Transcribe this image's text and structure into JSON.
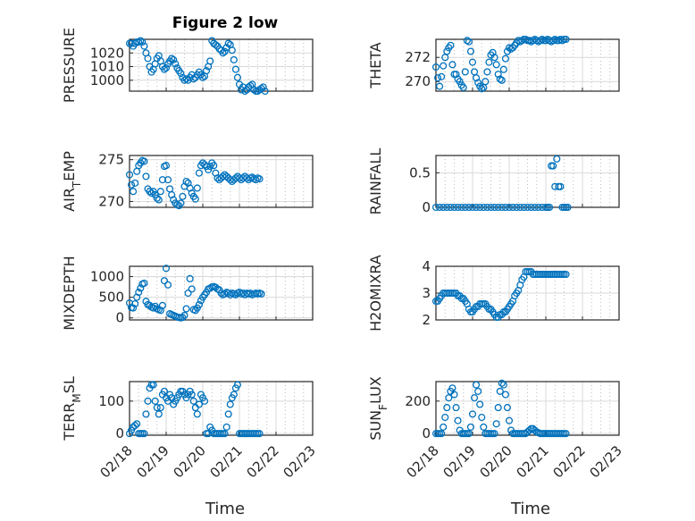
{
  "figure": {
    "title": "Figure 2 low"
  },
  "chart_data": [
    {
      "id": "pressure",
      "type": "scatter",
      "ylabel": "PRESSURE",
      "ylim": [
        992,
        1030
      ],
      "yticks": [
        1000,
        1010,
        1020
      ],
      "xlim": [
        0,
        5
      ],
      "xticks": [
        "02/18",
        "02/19",
        "02/20",
        "02/21",
        "02/22",
        "02/23"
      ],
      "show_xticklabels": false,
      "title": "Figure 2 low",
      "x": [
        0,
        0.05,
        0.1,
        0.15,
        0.2,
        0.25,
        0.3,
        0.35,
        0.4,
        0.45,
        0.5,
        0.55,
        0.6,
        0.65,
        0.7,
        0.75,
        0.8,
        0.85,
        0.9,
        0.95,
        1.0,
        1.05,
        1.1,
        1.15,
        1.2,
        1.25,
        1.3,
        1.35,
        1.4,
        1.45,
        1.5,
        1.55,
        1.6,
        1.65,
        1.7,
        1.75,
        1.8,
        1.85,
        1.9,
        1.95,
        2.0,
        2.05,
        2.1,
        2.15,
        2.2,
        2.25,
        2.3,
        2.35,
        2.4,
        2.45,
        2.5,
        2.55,
        2.6,
        2.65,
        2.7,
        2.75,
        2.8,
        2.85,
        2.9,
        2.95,
        3.0,
        3.05,
        3.1,
        3.15,
        3.2,
        3.25,
        3.3,
        3.35,
        3.4,
        3.45,
        3.5,
        3.55,
        3.6,
        3.65,
        3.7
      ],
      "y": [
        1027,
        1027,
        1025,
        1027,
        1028,
        1028,
        1029,
        1028,
        1025,
        1020,
        1016,
        1010,
        1006,
        1008,
        1012,
        1016,
        1018,
        1014,
        1010,
        1008,
        1009,
        1012,
        1014,
        1016,
        1015,
        1012,
        1009,
        1007,
        1005,
        1002,
        1000,
        1001,
        1000,
        1002,
        1004,
        1001,
        1002,
        1004,
        1006,
        1004,
        1002,
        1003,
        1007,
        1010,
        1014,
        1029,
        1027,
        1026,
        1025,
        1023,
        1022,
        1020,
        1021,
        1024,
        1027,
        1026,
        1022,
        1015,
        1008,
        1002,
        997,
        993,
        995,
        992,
        993,
        995,
        996,
        997,
        993,
        992,
        992,
        993,
        994,
        995,
        992
      ]
    },
    {
      "id": "theta",
      "type": "scatter",
      "ylabel": "THETA",
      "ylim": [
        269.2,
        273.5
      ],
      "yticks": [
        270,
        272
      ],
      "xlim": [
        0,
        5
      ],
      "xticks": [
        "02/18",
        "02/19",
        "02/20",
        "02/21",
        "02/22",
        "02/23"
      ],
      "show_xticklabels": false,
      "x": [
        0,
        0.05,
        0.1,
        0.15,
        0.2,
        0.25,
        0.3,
        0.35,
        0.4,
        0.45,
        0.5,
        0.55,
        0.6,
        0.65,
        0.7,
        0.75,
        0.8,
        0.85,
        0.9,
        0.95,
        1.0,
        1.05,
        1.1,
        1.15,
        1.2,
        1.25,
        1.3,
        1.35,
        1.4,
        1.45,
        1.5,
        1.55,
        1.6,
        1.65,
        1.7,
        1.75,
        1.8,
        1.85,
        1.9,
        1.95,
        2.0,
        2.05,
        2.1,
        2.15,
        2.2,
        2.25,
        2.3,
        2.35,
        2.4,
        2.45,
        2.5,
        2.55,
        2.6,
        2.65,
        2.7,
        2.75,
        2.8,
        2.85,
        2.9,
        2.95,
        3.0,
        3.05,
        3.1,
        3.15,
        3.2,
        3.25,
        3.3,
        3.35,
        3.4,
        3.45,
        3.5,
        3.55
      ],
      "y": [
        271.2,
        270.3,
        269.6,
        270.4,
        271.3,
        272.0,
        272.5,
        272.8,
        273.0,
        271.4,
        270.6,
        270.6,
        270.2,
        270.0,
        269.7,
        269.5,
        270.8,
        273.4,
        273.3,
        272.5,
        271.6,
        270.8,
        270.3,
        269.9,
        269.6,
        269.4,
        269.5,
        270.0,
        270.8,
        271.6,
        272.2,
        272.4,
        272.0,
        271.4,
        270.6,
        270.2,
        270.1,
        271.0,
        271.9,
        272.5,
        272.8,
        272.7,
        272.8,
        273.0,
        273.2,
        273.4,
        273.3,
        273.4,
        273.5,
        273.5,
        273.4,
        273.4,
        273.3,
        273.4,
        273.5,
        273.4,
        273.3,
        273.4,
        273.5,
        273.4,
        273.4,
        273.5,
        273.4,
        273.3,
        273.4,
        273.5,
        273.4,
        273.4,
        273.5,
        273.4,
        273.5,
        273.5
      ]
    },
    {
      "id": "air_temp",
      "type": "scatter",
      "ylabel": "AIR_TEMP",
      "ylim": [
        269.3,
        275.5
      ],
      "yticks": [
        270,
        275
      ],
      "xlim": [
        0,
        5
      ],
      "xticks": [
        "02/18",
        "02/19",
        "02/20",
        "02/21",
        "02/22",
        "02/23"
      ],
      "show_xticklabels": false,
      "x": [
        0,
        0.05,
        0.1,
        0.15,
        0.2,
        0.25,
        0.3,
        0.35,
        0.4,
        0.45,
        0.5,
        0.55,
        0.6,
        0.65,
        0.7,
        0.75,
        0.8,
        0.85,
        0.9,
        0.95,
        1.0,
        1.05,
        1.1,
        1.15,
        1.2,
        1.25,
        1.3,
        1.35,
        1.4,
        1.45,
        1.5,
        1.55,
        1.6,
        1.65,
        1.7,
        1.75,
        1.8,
        1.85,
        1.9,
        1.95,
        2.0,
        2.05,
        2.1,
        2.15,
        2.2,
        2.25,
        2.3,
        2.35,
        2.4,
        2.45,
        2.5,
        2.55,
        2.6,
        2.65,
        2.7,
        2.75,
        2.8,
        2.85,
        2.9,
        2.95,
        3.0,
        3.05,
        3.1,
        3.15,
        3.2,
        3.25,
        3.3,
        3.35,
        3.4,
        3.45,
        3.5,
        3.55
      ],
      "y": [
        273.2,
        272.0,
        271.2,
        272.2,
        273.6,
        274.3,
        274.6,
        274.9,
        274.8,
        273.0,
        271.5,
        271.2,
        271.0,
        271.2,
        270.8,
        270.4,
        270.2,
        271.2,
        272.6,
        274.2,
        274.3,
        272.6,
        271.5,
        270.8,
        270.2,
        269.8,
        269.6,
        269.5,
        269.8,
        270.6,
        271.8,
        272.4,
        272.2,
        271.6,
        271.0,
        270.6,
        270.3,
        271.6,
        273.4,
        274.3,
        274.6,
        274.4,
        274.2,
        273.8,
        274.2,
        274.6,
        274.3,
        273.4,
        272.8,
        272.6,
        272.8,
        273.0,
        273.2,
        273.0,
        272.8,
        272.6,
        272.4,
        272.6,
        272.8,
        273.0,
        272.8,
        272.6,
        272.8,
        273.0,
        272.8,
        272.6,
        272.8,
        272.9,
        272.7,
        272.6,
        272.8,
        272.7
      ]
    },
    {
      "id": "rainfall",
      "type": "scatter",
      "ylabel": "RAINFALL",
      "ylim": [
        0,
        0.75
      ],
      "yticks": [
        0,
        0.5
      ],
      "xlim": [
        0,
        5
      ],
      "xticks": [
        "02/18",
        "02/19",
        "02/20",
        "02/21",
        "02/22",
        "02/23"
      ],
      "show_xticklabels": false,
      "x": [
        0,
        0.1,
        0.2,
        0.3,
        0.4,
        0.5,
        0.6,
        0.7,
        0.8,
        0.9,
        1.0,
        1.1,
        1.2,
        1.3,
        1.4,
        1.5,
        1.6,
        1.7,
        1.8,
        1.9,
        2.0,
        2.1,
        2.2,
        2.3,
        2.4,
        2.5,
        2.6,
        2.7,
        2.8,
        2.9,
        3.0,
        3.05,
        3.1,
        3.15,
        3.2,
        3.25,
        3.3,
        3.35,
        3.4,
        3.45,
        3.5,
        3.55,
        3.6
      ],
      "y": [
        0,
        0,
        0,
        0,
        0,
        0,
        0,
        0,
        0,
        0,
        0,
        0,
        0,
        0,
        0,
        0,
        0,
        0,
        0,
        0,
        0,
        0,
        0,
        0,
        0,
        0,
        0,
        0,
        0,
        0,
        0,
        0,
        0,
        0.6,
        0.6,
        0.3,
        0.7,
        0.3,
        0.3,
        0,
        0,
        0,
        0
      ]
    },
    {
      "id": "mixdepth",
      "type": "scatter",
      "ylabel": "MIXDEPTH",
      "ylim": [
        -50,
        1250
      ],
      "yticks": [
        0,
        500,
        1000
      ],
      "xlim": [
        0,
        5
      ],
      "xticks": [
        "02/18",
        "02/19",
        "02/20",
        "02/21",
        "02/22",
        "02/23"
      ],
      "show_xticklabels": false,
      "x": [
        0,
        0.05,
        0.1,
        0.15,
        0.2,
        0.25,
        0.3,
        0.35,
        0.4,
        0.45,
        0.5,
        0.55,
        0.6,
        0.65,
        0.7,
        0.75,
        0.8,
        0.85,
        0.9,
        0.95,
        1.0,
        1.05,
        1.1,
        1.15,
        1.2,
        1.25,
        1.3,
        1.35,
        1.4,
        1.45,
        1.5,
        1.55,
        1.6,
        1.65,
        1.7,
        1.75,
        1.8,
        1.85,
        1.9,
        1.95,
        2.0,
        2.05,
        2.1,
        2.15,
        2.2,
        2.25,
        2.3,
        2.35,
        2.4,
        2.45,
        2.5,
        2.55,
        2.6,
        2.65,
        2.7,
        2.75,
        2.8,
        2.85,
        2.9,
        2.95,
        3.0,
        3.05,
        3.1,
        3.15,
        3.2,
        3.25,
        3.3,
        3.35,
        3.4,
        3.45,
        3.5,
        3.55,
        3.6
      ],
      "y": [
        360,
        250,
        240,
        340,
        500,
        620,
        720,
        820,
        840,
        400,
        320,
        300,
        260,
        240,
        280,
        220,
        200,
        180,
        300,
        900,
        1200,
        800,
        100,
        80,
        60,
        40,
        20,
        10,
        0,
        10,
        60,
        220,
        600,
        950,
        700,
        200,
        180,
        240,
        320,
        420,
        500,
        560,
        620,
        700,
        720,
        750,
        760,
        740,
        700,
        680,
        600,
        560,
        580,
        620,
        600,
        560,
        600,
        580,
        560,
        600,
        620,
        580,
        600,
        560,
        600,
        580,
        600,
        560,
        580,
        600,
        580,
        600,
        580
      ]
    },
    {
      "id": "h2omixra",
      "type": "scatter",
      "ylabel": "H2OMIXRA",
      "ylim": [
        2,
        4
      ],
      "yticks": [
        2,
        3,
        4
      ],
      "xlim": [
        0,
        5
      ],
      "xticks": [
        "02/18",
        "02/19",
        "02/20",
        "02/21",
        "02/22",
        "02/23"
      ],
      "show_xticklabels": false,
      "x": [
        0,
        0.05,
        0.1,
        0.15,
        0.2,
        0.25,
        0.3,
        0.35,
        0.4,
        0.45,
        0.5,
        0.55,
        0.6,
        0.65,
        0.7,
        0.75,
        0.8,
        0.85,
        0.9,
        0.95,
        1.0,
        1.05,
        1.1,
        1.15,
        1.2,
        1.25,
        1.3,
        1.35,
        1.4,
        1.45,
        1.5,
        1.55,
        1.6,
        1.65,
        1.7,
        1.75,
        1.8,
        1.85,
        1.9,
        1.95,
        2.0,
        2.05,
        2.1,
        2.15,
        2.2,
        2.25,
        2.3,
        2.35,
        2.4,
        2.45,
        2.5,
        2.55,
        2.6,
        2.65,
        2.7,
        2.75,
        2.8,
        2.85,
        2.9,
        2.95,
        3.0,
        3.05,
        3.1,
        3.15,
        3.2,
        3.25,
        3.3,
        3.35,
        3.4,
        3.45,
        3.5,
        3.55
      ],
      "y": [
        2.7,
        2.7,
        2.8,
        2.9,
        3.0,
        3.0,
        3.0,
        3.0,
        3.0,
        3.0,
        3.0,
        3.0,
        2.9,
        2.9,
        2.8,
        2.8,
        2.7,
        2.6,
        2.4,
        2.3,
        2.3,
        2.4,
        2.5,
        2.5,
        2.6,
        2.6,
        2.6,
        2.6,
        2.5,
        2.4,
        2.4,
        2.3,
        2.2,
        2.1,
        2.1,
        2.2,
        2.2,
        2.3,
        2.3,
        2.4,
        2.5,
        2.6,
        2.7,
        2.9,
        3.0,
        3.1,
        3.3,
        3.5,
        3.6,
        3.8,
        3.8,
        3.8,
        3.8,
        3.7,
        3.7,
        3.7,
        3.7,
        3.7,
        3.7,
        3.7,
        3.7,
        3.7,
        3.7,
        3.7,
        3.7,
        3.7,
        3.7,
        3.7,
        3.7,
        3.7,
        3.7,
        3.7
      ]
    },
    {
      "id": "terr_msl",
      "type": "scatter",
      "ylabel": "TERR_MSL",
      "ylim": [
        -5,
        160
      ],
      "yticks": [
        0,
        100
      ],
      "xlim": [
        0,
        5
      ],
      "xticks": [
        "02/18",
        "02/19",
        "02/20",
        "02/21",
        "02/22",
        "02/23"
      ],
      "show_xticklabels": true,
      "x": [
        0,
        0.05,
        0.1,
        0.15,
        0.2,
        0.25,
        0.3,
        0.35,
        0.4,
        0.45,
        0.5,
        0.55,
        0.6,
        0.65,
        0.7,
        0.75,
        0.8,
        0.85,
        0.9,
        0.95,
        1.0,
        1.05,
        1.1,
        1.15,
        1.2,
        1.25,
        1.3,
        1.35,
        1.4,
        1.45,
        1.5,
        1.55,
        1.6,
        1.65,
        1.7,
        1.75,
        1.8,
        1.85,
        1.9,
        1.95,
        2.0,
        2.05,
        2.1,
        2.15,
        2.2,
        2.25,
        2.3,
        2.35,
        2.4,
        2.45,
        2.5,
        2.55,
        2.6,
        2.65,
        2.7,
        2.75,
        2.8,
        2.85,
        2.9,
        2.95,
        3.0,
        3.05,
        3.1,
        3.15,
        3.2,
        3.25,
        3.3,
        3.35,
        3.4,
        3.45,
        3.5,
        3.55
      ],
      "y": [
        0,
        10,
        20,
        25,
        30,
        0,
        0,
        0,
        0,
        60,
        100,
        140,
        150,
        150,
        100,
        80,
        60,
        80,
        120,
        130,
        110,
        100,
        120,
        110,
        90,
        100,
        110,
        120,
        130,
        130,
        120,
        110,
        120,
        130,
        120,
        100,
        80,
        60,
        90,
        120,
        110,
        100,
        0,
        0,
        20,
        10,
        0,
        0,
        0,
        0,
        0,
        0,
        0,
        20,
        60,
        90,
        110,
        120,
        140,
        150,
        0,
        0,
        0,
        0,
        0,
        0,
        0,
        0,
        0,
        0,
        0,
        0
      ]
    },
    {
      "id": "sun_flux",
      "type": "scatter",
      "ylabel": "SUN_FLUX",
      "ylim": [
        -10,
        320
      ],
      "yticks": [
        0,
        200
      ],
      "xlim": [
        0,
        5
      ],
      "xticks": [
        "02/18",
        "02/19",
        "02/20",
        "02/21",
        "02/22",
        "02/23"
      ],
      "show_xticklabels": true,
      "x": [
        0,
        0.05,
        0.1,
        0.15,
        0.2,
        0.25,
        0.3,
        0.35,
        0.4,
        0.45,
        0.5,
        0.55,
        0.6,
        0.65,
        0.7,
        0.75,
        0.8,
        0.85,
        0.9,
        0.95,
        1.0,
        1.05,
        1.1,
        1.15,
        1.2,
        1.25,
        1.3,
        1.35,
        1.4,
        1.45,
        1.5,
        1.55,
        1.6,
        1.65,
        1.7,
        1.75,
        1.8,
        1.85,
        1.9,
        1.95,
        2.0,
        2.05,
        2.1,
        2.15,
        2.2,
        2.25,
        2.3,
        2.35,
        2.4,
        2.45,
        2.5,
        2.55,
        2.6,
        2.65,
        2.7,
        2.75,
        2.8,
        2.85,
        2.9,
        2.95,
        3.0,
        3.05,
        3.1,
        3.15,
        3.2,
        3.25,
        3.3,
        3.35,
        3.4,
        3.45,
        3.5,
        3.55
      ],
      "y": [
        0,
        0,
        0,
        0,
        40,
        100,
        160,
        220,
        260,
        280,
        240,
        160,
        80,
        20,
        0,
        0,
        0,
        0,
        0,
        40,
        120,
        220,
        300,
        260,
        180,
        100,
        40,
        0,
        0,
        0,
        0,
        0,
        0,
        60,
        160,
        260,
        310,
        300,
        240,
        160,
        80,
        20,
        0,
        0,
        0,
        0,
        0,
        0,
        0,
        0,
        10,
        20,
        30,
        30,
        20,
        10,
        5,
        0,
        0,
        0,
        0,
        0,
        0,
        0,
        0,
        0,
        0,
        0,
        0,
        0,
        0,
        0
      ]
    }
  ],
  "xaxis": {
    "label": "Time"
  },
  "colors": {
    "marker": "#0072bd",
    "axis": "#262626"
  }
}
